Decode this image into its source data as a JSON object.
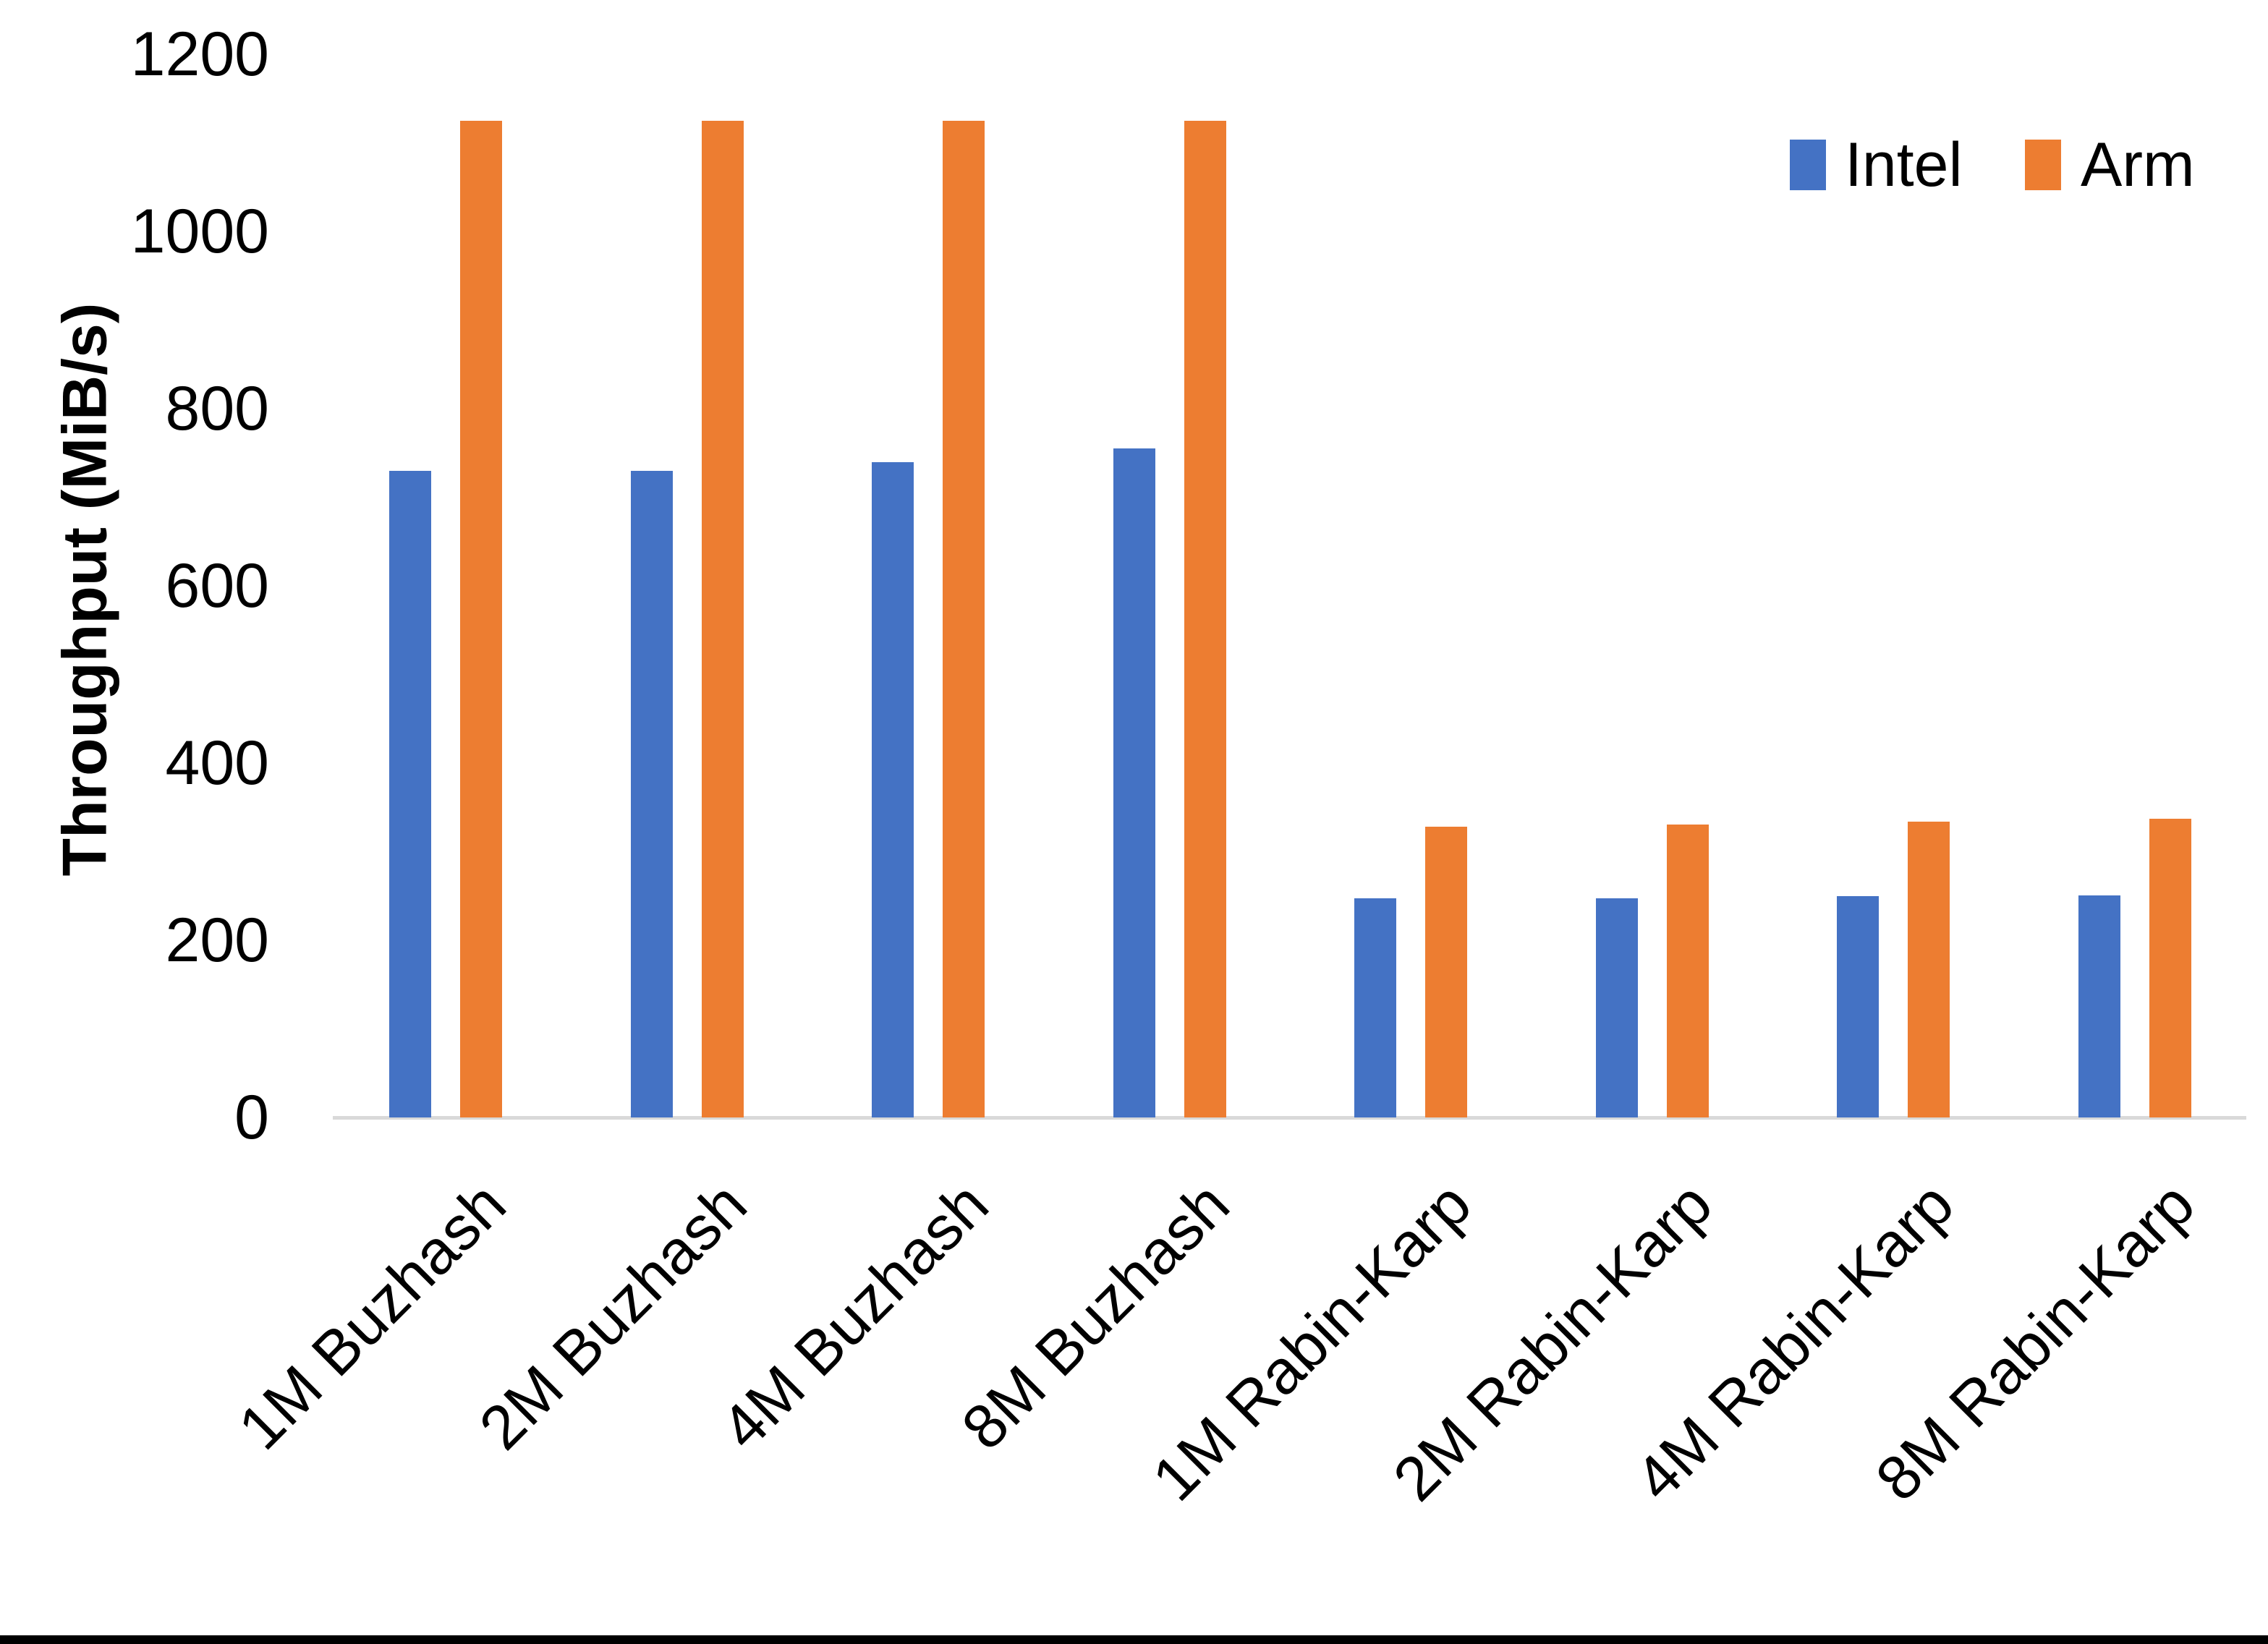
{
  "chart_data": {
    "type": "bar",
    "title": "",
    "xlabel": "",
    "ylabel": "Throughput (MiB/s)",
    "categories": [
      "1M Buzhash",
      "2M Buzhash",
      "4M Buzhash",
      "8M Buzhash",
      "1M Rabin-Karp",
      "2M Rabin-Karp",
      "4M Rabin-Karp",
      "8M Rabin-Karp"
    ],
    "series": [
      {
        "name": "Intel",
        "color": "#4472C4",
        "values": [
          730,
          730,
          740,
          755,
          247,
          247,
          250,
          251
        ]
      },
      {
        "name": "Arm",
        "color": "#ED7D31",
        "values": [
          1125,
          1125,
          1125,
          1125,
          328,
          331,
          334,
          337
        ]
      }
    ],
    "ylim": [
      0,
      1200
    ],
    "yticks": [
      0,
      200,
      400,
      600,
      800,
      1000,
      1200
    ],
    "legend_position": "top-right",
    "grid": false,
    "axis_line_color": "#D9D9D9",
    "text_color": "#000000"
  },
  "page": {
    "bottom_border_color": "#000000"
  }
}
